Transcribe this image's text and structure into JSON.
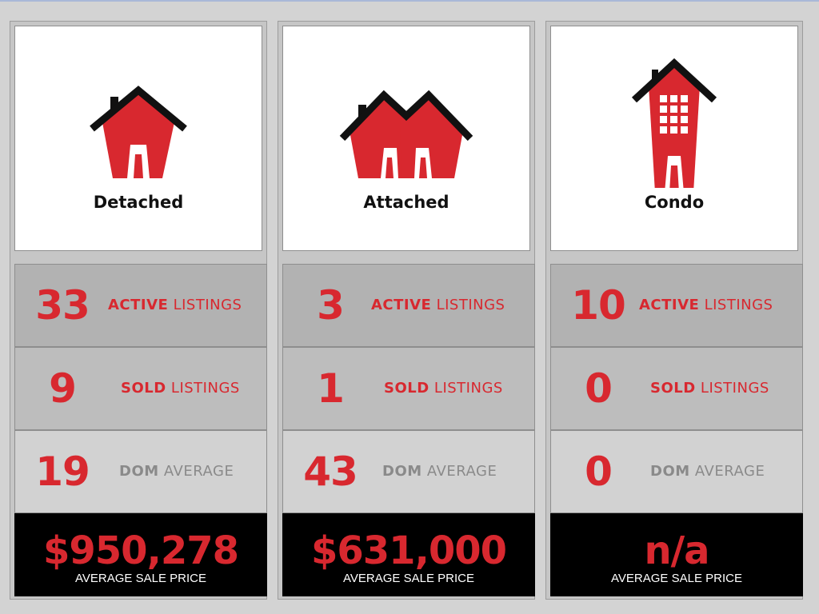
{
  "colors": {
    "accent_red": "#d8282f",
    "panel_black": "#000000",
    "roof": "#111111"
  },
  "columns": [
    {
      "type": "Detached",
      "icon": "detached-house-icon",
      "active": {
        "value": "33",
        "strong": "ACTIVE",
        "rest": " LISTINGS"
      },
      "sold": {
        "value": "9",
        "strong": "SOLD",
        "rest": " LISTINGS"
      },
      "dom": {
        "value": "19",
        "strong": "DOM",
        "rest": " AVERAGE"
      },
      "price": {
        "value": "$950,278",
        "label": "AVERAGE SALE PRICE"
      }
    },
    {
      "type": "Attached",
      "icon": "attached-house-icon",
      "active": {
        "value": "3",
        "strong": "ACTIVE",
        "rest": " LISTINGS"
      },
      "sold": {
        "value": "1",
        "strong": "SOLD",
        "rest": " LISTINGS"
      },
      "dom": {
        "value": "43",
        "strong": "DOM",
        "rest": " AVERAGE"
      },
      "price": {
        "value": "$631,000",
        "label": "AVERAGE SALE PRICE"
      }
    },
    {
      "type": "Condo",
      "icon": "condo-building-icon",
      "active": {
        "value": "10",
        "strong": "ACTIVE",
        "rest": " LISTINGS"
      },
      "sold": {
        "value": "0",
        "strong": "SOLD",
        "rest": " LISTINGS"
      },
      "dom": {
        "value": "0",
        "strong": "DOM",
        "rest": " AVERAGE"
      },
      "price": {
        "value": "n/a",
        "label": "AVERAGE SALE PRICE"
      }
    }
  ]
}
